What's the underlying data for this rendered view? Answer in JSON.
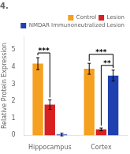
{
  "chart_data": {
    "type": "bar",
    "title": "4.",
    "categories": [
      "Hippocampus",
      "Cortex"
    ],
    "series": [
      {
        "name": "Control",
        "color": "#f5a020",
        "values": [
          4.2,
          3.9
        ],
        "errors": [
          0.35,
          0.32
        ]
      },
      {
        "name": "Lesion",
        "color": "#d82020",
        "values": [
          1.8,
          0.35
        ],
        "errors": [
          0.28,
          0.08
        ]
      },
      {
        "name": "NMDAR Immunoneutralized Lesion",
        "color": "#2040b0",
        "values": [
          0.05,
          3.5
        ],
        "errors": [
          0.08,
          0.32
        ]
      }
    ],
    "ylabel": "Relative Protein Expression",
    "ylim": [
      0,
      5.8
    ],
    "yticks": [
      0,
      1,
      2,
      3,
      4,
      5
    ],
    "grid": false,
    "legend": "upper right",
    "annotations": [
      {
        "text": "***",
        "category": "Hippocampus",
        "series": [
          "Control",
          "Lesion"
        ]
      },
      {
        "text": "***",
        "category": "Cortex",
        "series": [
          "Control",
          "NMDAR Immunoneutralized Lesion"
        ]
      },
      {
        "text": "**",
        "category": "Cortex",
        "series": [
          "Lesion",
          "NMDAR Immunoneutralized Lesion"
        ]
      }
    ]
  }
}
